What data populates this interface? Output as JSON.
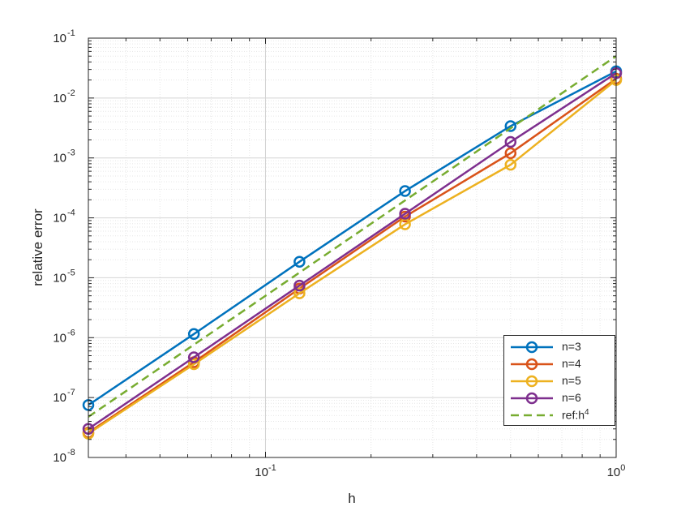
{
  "chart_data": {
    "type": "line",
    "title": "",
    "xlabel": "h",
    "ylabel": "relative error",
    "xscale": "log",
    "yscale": "log",
    "xlim": [
      0.03125,
      1
    ],
    "ylim": [
      1e-08,
      0.1
    ],
    "grid": true,
    "legend_position": "bottom-right",
    "x_ticks": [
      {
        "value": 0.1,
        "base": "10",
        "exp": "-1"
      },
      {
        "value": 1,
        "base": "10",
        "exp": "0"
      }
    ],
    "y_ticks": [
      {
        "value": 1e-08,
        "base": "10",
        "exp": "-8"
      },
      {
        "value": 1e-07,
        "base": "10",
        "exp": "-7"
      },
      {
        "value": 1e-06,
        "base": "10",
        "exp": "-6"
      },
      {
        "value": 1e-05,
        "base": "10",
        "exp": "-5"
      },
      {
        "value": 0.0001,
        "base": "10",
        "exp": "-4"
      },
      {
        "value": 0.001,
        "base": "10",
        "exp": "-3"
      },
      {
        "value": 0.01,
        "base": "10",
        "exp": "-2"
      },
      {
        "value": 0.1,
        "base": "10",
        "exp": "-1"
      }
    ],
    "x": [
      0.03125,
      0.0625,
      0.125,
      0.25,
      0.5,
      1
    ],
    "series": [
      {
        "name": "n=3",
        "color": "#0072BD",
        "marker": "circle",
        "dash": false,
        "values": [
          7.5e-08,
          1.15e-06,
          1.85e-05,
          0.00028,
          0.0034,
          0.028
        ]
      },
      {
        "name": "n=4",
        "color": "#D95319",
        "marker": "circle",
        "dash": false,
        "values": [
          2.6e-08,
          3.9e-07,
          6.6e-06,
          0.000105,
          0.0012,
          0.021
        ]
      },
      {
        "name": "n=5",
        "color": "#EDB120",
        "marker": "circle",
        "dash": false,
        "values": [
          2.5e-08,
          3.6e-07,
          5.5e-06,
          7.8e-05,
          0.00077,
          0.02
        ]
      },
      {
        "name": "n=6",
        "color": "#7E2F8E",
        "marker": "circle",
        "dash": false,
        "values": [
          3e-08,
          4.7e-07,
          7.4e-06,
          0.000117,
          0.00185,
          0.026
        ]
      },
      {
        "name": "ref:h",
        "name_sup": "4",
        "color": "#77AC30",
        "marker": "none",
        "dash": true,
        "values": [
          4.77e-08,
          7.63e-07,
          1.22e-05,
          0.000195,
          0.00313,
          0.05
        ]
      }
    ]
  }
}
